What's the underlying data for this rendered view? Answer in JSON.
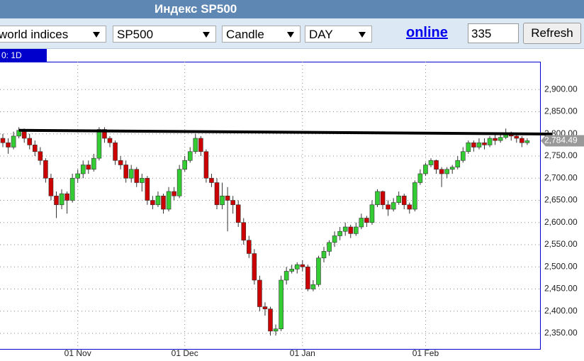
{
  "header": {
    "title": "Индекс SP500"
  },
  "toolbar": {
    "selects": [
      "world indices",
      "SP500",
      "Candle",
      "DAY"
    ],
    "link": "online",
    "input": "335",
    "button": "Refresh"
  },
  "chart_tab": "0: 1D",
  "chart_data": {
    "type": "candlestick",
    "categories": [
      null,
      null,
      null,
      null,
      null,
      null,
      null,
      null,
      null,
      null,
      null,
      null,
      null,
      null,
      "01 Nov",
      null,
      null,
      null,
      null,
      null,
      null,
      null,
      null,
      null,
      null,
      null,
      null,
      null,
      null,
      null,
      null,
      null,
      null,
      null,
      "01 Dec",
      null,
      null,
      null,
      null,
      null,
      null,
      null,
      null,
      null,
      null,
      null,
      null,
      null,
      null,
      null,
      null,
      null,
      null,
      null,
      null,
      null,
      "01 Jan",
      null,
      null,
      null,
      null,
      null,
      null,
      null,
      null,
      null,
      null,
      null,
      null,
      null,
      null,
      null,
      null,
      null,
      null,
      null,
      null,
      null,
      null,
      "01 Feb",
      null,
      null,
      null,
      null,
      null,
      null,
      null,
      null,
      null,
      null,
      null,
      null,
      null,
      null,
      null,
      null,
      null,
      null,
      null
    ],
    "open": [
      2790,
      2780,
      2770,
      2795,
      2808,
      2790,
      2775,
      2760,
      2740,
      2700,
      2660,
      2640,
      2665,
      2650,
      2700,
      2710,
      2730,
      2720,
      2745,
      2810,
      2790,
      2780,
      2740,
      2730,
      2700,
      2720,
      2690,
      2700,
      2650,
      2640,
      2660,
      2630,
      2670,
      2660,
      2720,
      2740,
      2760,
      2790,
      2760,
      2700,
      2690,
      2640,
      2660,
      2650,
      2640,
      2600,
      2560,
      2530,
      2470,
      2410,
      2405,
      2355,
      2360,
      2470,
      2490,
      2495,
      2505,
      2500,
      2450,
      2460,
      2520,
      2535,
      2555,
      2570,
      2580,
      2590,
      2575,
      2590,
      2610,
      2600,
      2640,
      2670,
      2640,
      2630,
      2645,
      2660,
      2640,
      2630,
      2690,
      2710,
      2730,
      2740,
      2720,
      2710,
      2720,
      2725,
      2740,
      2760,
      2780,
      2770,
      2780,
      2775,
      2790,
      2785,
      2792,
      2800,
      2795,
      2790,
      2780
    ],
    "high": [
      2800,
      2790,
      2805,
      2815,
      2812,
      2800,
      2785,
      2770,
      2745,
      2710,
      2670,
      2675,
      2670,
      2710,
      2720,
      2740,
      2740,
      2755,
      2815,
      2815,
      2795,
      2785,
      2750,
      2740,
      2730,
      2725,
      2710,
      2705,
      2660,
      2670,
      2665,
      2680,
      2680,
      2730,
      2750,
      2770,
      2800,
      2795,
      2765,
      2710,
      2700,
      2690,
      2680,
      2660,
      2650,
      2610,
      2570,
      2540,
      2480,
      2420,
      2410,
      2370,
      2480,
      2500,
      2505,
      2510,
      2515,
      2505,
      2470,
      2525,
      2545,
      2560,
      2580,
      2590,
      2600,
      2595,
      2600,
      2620,
      2615,
      2650,
      2675,
      2672,
      2650,
      2655,
      2670,
      2665,
      2645,
      2695,
      2720,
      2735,
      2745,
      2742,
      2725,
      2725,
      2730,
      2750,
      2770,
      2785,
      2785,
      2790,
      2790,
      2795,
      2800,
      2798,
      2812,
      2805,
      2800,
      2795,
      2790
    ],
    "low": [
      2770,
      2755,
      2765,
      2790,
      2780,
      2765,
      2750,
      2730,
      2690,
      2650,
      2610,
      2630,
      2620,
      2645,
      2690,
      2700,
      2710,
      2715,
      2740,
      2780,
      2770,
      2730,
      2720,
      2690,
      2690,
      2680,
      2670,
      2640,
      2630,
      2635,
      2620,
      2625,
      2650,
      2655,
      2715,
      2735,
      2755,
      2750,
      2690,
      2680,
      2630,
      2630,
      2580,
      2620,
      2590,
      2550,
      2520,
      2460,
      2400,
      2390,
      2345,
      2345,
      2355,
      2460,
      2485,
      2485,
      2490,
      2445,
      2445,
      2455,
      2510,
      2525,
      2545,
      2560,
      2570,
      2565,
      2570,
      2585,
      2590,
      2595,
      2635,
      2630,
      2615,
      2625,
      2640,
      2630,
      2620,
      2625,
      2685,
      2705,
      2725,
      2710,
      2680,
      2700,
      2710,
      2720,
      2735,
      2755,
      2760,
      2765,
      2765,
      2770,
      2775,
      2780,
      2788,
      2785,
      2780,
      2770,
      2775
    ],
    "close": [
      2780,
      2770,
      2795,
      2808,
      2790,
      2775,
      2760,
      2740,
      2700,
      2660,
      2640,
      2665,
      2650,
      2700,
      2710,
      2730,
      2720,
      2745,
      2810,
      2790,
      2780,
      2740,
      2730,
      2700,
      2720,
      2690,
      2700,
      2650,
      2640,
      2660,
      2630,
      2670,
      2660,
      2720,
      2740,
      2760,
      2790,
      2760,
      2700,
      2690,
      2640,
      2660,
      2650,
      2640,
      2600,
      2560,
      2530,
      2470,
      2410,
      2405,
      2355,
      2360,
      2470,
      2490,
      2495,
      2505,
      2500,
      2450,
      2460,
      2520,
      2535,
      2555,
      2570,
      2580,
      2590,
      2575,
      2590,
      2610,
      2600,
      2640,
      2670,
      2640,
      2630,
      2645,
      2660,
      2640,
      2630,
      2690,
      2710,
      2730,
      2740,
      2720,
      2710,
      2720,
      2725,
      2740,
      2760,
      2780,
      2770,
      2780,
      2775,
      2790,
      2785,
      2792,
      2800,
      2795,
      2790,
      2780,
      2784.49
    ],
    "last_close_label": "2,784.49",
    "up_color": "#33cc33",
    "down_color": "#cc0000",
    "ylim": [
      2318,
      2958
    ],
    "yticks": [
      {
        "value": 2350,
        "label": "2,350.00"
      },
      {
        "value": 2400,
        "label": "2,400.00"
      },
      {
        "value": 2450,
        "label": "2,450.00"
      },
      {
        "value": 2500,
        "label": "2,500.00"
      },
      {
        "value": 2550,
        "label": "2,550.00"
      },
      {
        "value": 2600,
        "label": "2,600.00"
      },
      {
        "value": 2650,
        "label": "2,650.00"
      },
      {
        "value": 2700,
        "label": "2,700.00"
      },
      {
        "value": 2750,
        "label": "2,750.00"
      },
      {
        "value": 2800,
        "label": "2,800.00"
      },
      {
        "value": 2850,
        "label": "2,850.00"
      },
      {
        "value": 2900,
        "label": "2,900.00"
      }
    ],
    "trendline": {
      "from": [
        3,
        2808
      ],
      "to": [
        98,
        2800
      ]
    },
    "grid": true
  }
}
